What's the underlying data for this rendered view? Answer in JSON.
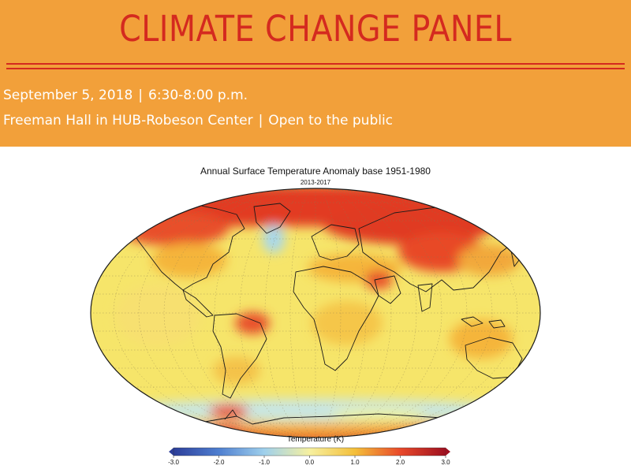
{
  "header": {
    "title": "CLIMATE CHANGE PANEL",
    "date": "September 5, 2018",
    "time": "6:30-8:00 p.m.",
    "venue": "Freeman Hall in HUB-Robeson Center",
    "access": "Open to the public",
    "separator": "|"
  },
  "colors": {
    "banner": "#f2a03a",
    "title": "#d42a1f",
    "info_text": "#ffffff"
  },
  "map": {
    "title": "Annual Surface Temperature Anomaly base 1951-1980",
    "subtitle": "2013-2017",
    "colorbar": {
      "label": "Temperature (K)",
      "range": [
        -3.0,
        3.0
      ],
      "ticks": [
        "-3.0",
        "-2.0",
        "-1.0",
        "0.0",
        "1.0",
        "2.0",
        "3.0"
      ],
      "palette": [
        "#2c3e9a",
        "#4f7fd0",
        "#9fd0ec",
        "#f6f0a0",
        "#f4bf3a",
        "#e8492a",
        "#9e1020"
      ]
    }
  }
}
